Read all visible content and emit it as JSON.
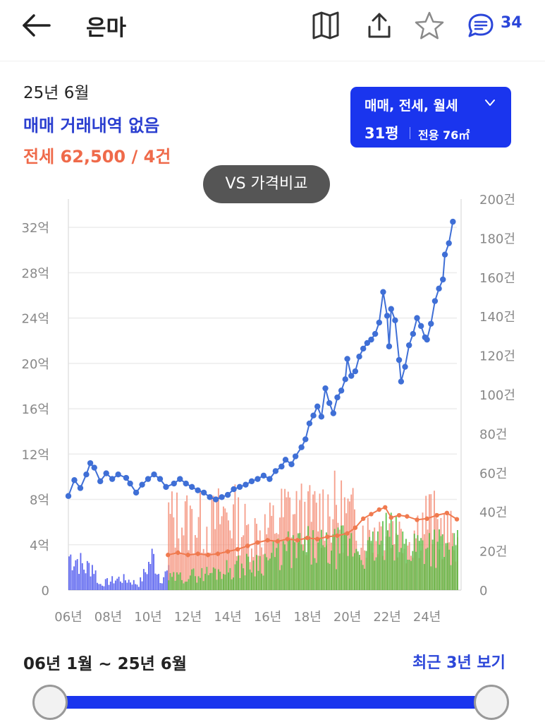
{
  "header": {
    "title": "은마",
    "comment_count": "34",
    "icons": [
      "back-arrow-icon",
      "map-icon",
      "share-icon",
      "star-icon",
      "comment-icon"
    ]
  },
  "summary": {
    "date": "25년 6월",
    "sale_status": "매매 거래내역 없음",
    "jeonse_status": "전세 62,500 / 4건"
  },
  "type_selector": {
    "types": "매매, 전세, 월세",
    "size": "31평",
    "exclusive_area": "전용 76㎡"
  },
  "vs_button": "VS 가격비교",
  "range": {
    "label": "06년 1월 ~ 25년 6월",
    "recent_button": "최근 3년 보기",
    "start_fraction": 0,
    "end_fraction": 1
  },
  "colors": {
    "sale": "#3f6fd6",
    "sale_volume": "#5a63ef",
    "jeonse": "#f08a6c",
    "jeonse_volume": "#f5907a",
    "wolse_volume": "#4fb83a",
    "accent": "#1a35ee"
  },
  "chart_data": {
    "type": "line",
    "grid": true,
    "x_ticks": [
      "06년",
      "08년",
      "10년",
      "12년",
      "14년",
      "16년",
      "18년",
      "20년",
      "22년",
      "24년"
    ],
    "y_left_ticks": [
      "0",
      "4억",
      "8억",
      "12억",
      "16억",
      "20억",
      "24억",
      "28억",
      "32억"
    ],
    "y_left_range": [
      0,
      34.5
    ],
    "y_right_ticks": [
      "0",
      "20건",
      "40건",
      "60건",
      "80건",
      "100건",
      "120건",
      "140건",
      "160건",
      "180건",
      "200건"
    ],
    "y_right_range": [
      0,
      200
    ],
    "x_range": [
      2006.0,
      2025.5
    ],
    "series": [
      {
        "key": "sale_price",
        "kind": "line",
        "axis": "left",
        "points": [
          [
            2006.0,
            8.3
          ],
          [
            2006.3,
            9.7
          ],
          [
            2006.6,
            9.0
          ],
          [
            2006.9,
            10.2
          ],
          [
            2007.1,
            11.2
          ],
          [
            2007.3,
            10.8
          ],
          [
            2007.6,
            9.6
          ],
          [
            2007.9,
            10.3
          ],
          [
            2008.2,
            9.8
          ],
          [
            2008.5,
            10.2
          ],
          [
            2008.9,
            9.9
          ],
          [
            2009.1,
            9.4
          ],
          [
            2009.4,
            8.6
          ],
          [
            2009.7,
            9.3
          ],
          [
            2010.0,
            9.8
          ],
          [
            2010.3,
            10.2
          ],
          [
            2010.6,
            9.8
          ],
          [
            2010.9,
            9.1
          ],
          [
            2011.3,
            9.4
          ],
          [
            2011.6,
            9.8
          ],
          [
            2011.9,
            9.4
          ],
          [
            2012.2,
            9.1
          ],
          [
            2012.5,
            8.8
          ],
          [
            2012.8,
            8.6
          ],
          [
            2013.1,
            8.2
          ],
          [
            2013.4,
            8.0
          ],
          [
            2013.7,
            8.2
          ],
          [
            2014.0,
            8.4
          ],
          [
            2014.3,
            8.9
          ],
          [
            2014.6,
            9.1
          ],
          [
            2014.9,
            9.3
          ],
          [
            2015.2,
            9.6
          ],
          [
            2015.5,
            9.8
          ],
          [
            2015.8,
            10.1
          ],
          [
            2016.1,
            9.8
          ],
          [
            2016.4,
            10.5
          ],
          [
            2016.7,
            10.9
          ],
          [
            2016.9,
            11.5
          ],
          [
            2017.2,
            11.1
          ],
          [
            2017.4,
            11.8
          ],
          [
            2017.7,
            12.6
          ],
          [
            2017.9,
            13.3
          ],
          [
            2018.1,
            14.7
          ],
          [
            2018.3,
            15.4
          ],
          [
            2018.5,
            16.2
          ],
          [
            2018.7,
            15.3
          ],
          [
            2018.9,
            17.8
          ],
          [
            2019.1,
            16.5
          ],
          [
            2019.3,
            15.6
          ],
          [
            2019.5,
            17.0
          ],
          [
            2019.7,
            17.6
          ],
          [
            2019.9,
            18.6
          ],
          [
            2020.0,
            20.4
          ],
          [
            2020.2,
            18.9
          ],
          [
            2020.4,
            19.3
          ],
          [
            2020.6,
            20.6
          ],
          [
            2020.8,
            21.3
          ],
          [
            2021.0,
            21.8
          ],
          [
            2021.2,
            22.1
          ],
          [
            2021.4,
            22.6
          ],
          [
            2021.6,
            23.6
          ],
          [
            2021.8,
            26.3
          ],
          [
            2022.0,
            24.2
          ],
          [
            2022.1,
            21.5
          ],
          [
            2022.2,
            24.8
          ],
          [
            2022.4,
            23.8
          ],
          [
            2022.6,
            20.3
          ],
          [
            2022.7,
            18.4
          ],
          [
            2022.9,
            19.7
          ],
          [
            2023.1,
            21.6
          ],
          [
            2023.3,
            22.6
          ],
          [
            2023.5,
            24.0
          ],
          [
            2023.7,
            23.3
          ],
          [
            2023.9,
            22.3
          ],
          [
            2024.0,
            22.1
          ],
          [
            2024.2,
            23.5
          ],
          [
            2024.4,
            25.5
          ],
          [
            2024.6,
            26.6
          ],
          [
            2024.8,
            27.4
          ],
          [
            2024.9,
            29.6
          ],
          [
            2025.1,
            30.6
          ],
          [
            2025.3,
            32.5
          ]
        ]
      },
      {
        "key": "jeonse_price",
        "kind": "line",
        "axis": "left",
        "points": [
          [
            2011.0,
            3.1
          ],
          [
            2011.5,
            3.3
          ],
          [
            2012.0,
            3.1
          ],
          [
            2012.5,
            3.2
          ],
          [
            2013.0,
            3.1
          ],
          [
            2013.5,
            3.2
          ],
          [
            2014.0,
            3.4
          ],
          [
            2014.5,
            3.6
          ],
          [
            2015.0,
            3.9
          ],
          [
            2015.5,
            4.2
          ],
          [
            2016.0,
            4.4
          ],
          [
            2016.5,
            4.3
          ],
          [
            2017.0,
            4.5
          ],
          [
            2017.5,
            4.4
          ],
          [
            2018.0,
            4.6
          ],
          [
            2018.5,
            4.5
          ],
          [
            2019.0,
            4.7
          ],
          [
            2019.5,
            4.8
          ],
          [
            2020.0,
            5.0
          ],
          [
            2020.4,
            5.5
          ],
          [
            2020.8,
            6.3
          ],
          [
            2021.2,
            6.7
          ],
          [
            2021.6,
            7.1
          ],
          [
            2021.9,
            7.3
          ],
          [
            2022.2,
            6.4
          ],
          [
            2022.6,
            6.6
          ],
          [
            2023.0,
            6.5
          ],
          [
            2023.5,
            6.2
          ],
          [
            2024.0,
            6.3
          ],
          [
            2024.5,
            6.6
          ],
          [
            2025.0,
            6.8
          ],
          [
            2025.5,
            6.25
          ]
        ]
      },
      {
        "key": "sale_volume",
        "kind": "bar",
        "axis": "right",
        "range": [
          2006.0,
          2011.0
        ],
        "typical_range": [
          2,
          24
        ],
        "points": [
          [
            2006.0,
            24
          ],
          [
            2006.4,
            22
          ],
          [
            2006.8,
            15
          ],
          [
            2007.2,
            18
          ],
          [
            2007.5,
            4
          ],
          [
            2008.0,
            6
          ],
          [
            2008.5,
            8
          ],
          [
            2009.0,
            7
          ],
          [
            2009.5,
            4
          ],
          [
            2009.8,
            12
          ],
          [
            2010.2,
            24
          ],
          [
            2010.6,
            8
          ],
          [
            2010.9,
            12
          ]
        ]
      },
      {
        "key": "jeonse_volume",
        "kind": "bar",
        "axis": "right",
        "range": [
          2011.0,
          2025.5
        ],
        "typical_range": [
          10,
          55
        ],
        "points": [
          [
            2011.0,
            50
          ],
          [
            2012.0,
            48
          ],
          [
            2013.0,
            45
          ],
          [
            2014.0,
            55
          ],
          [
            2015.0,
            40
          ],
          [
            2016.0,
            42
          ],
          [
            2017.0,
            56
          ],
          [
            2018.0,
            50
          ],
          [
            2019.0,
            58
          ],
          [
            2020.0,
            52
          ],
          [
            2021.0,
            40
          ],
          [
            2022.0,
            45
          ],
          [
            2023.0,
            35
          ],
          [
            2024.0,
            52
          ],
          [
            2025.0,
            38
          ]
        ]
      },
      {
        "key": "wolse_volume",
        "kind": "bar",
        "axis": "right",
        "range": [
          2011.0,
          2025.5
        ],
        "typical_range": [
          5,
          40
        ],
        "points": [
          [
            2011.0,
            8
          ],
          [
            2012.0,
            10
          ],
          [
            2013.0,
            12
          ],
          [
            2014.0,
            15
          ],
          [
            2015.0,
            18
          ],
          [
            2016.0,
            22
          ],
          [
            2017.0,
            28
          ],
          [
            2018.0,
            30
          ],
          [
            2019.0,
            28
          ],
          [
            2020.0,
            32
          ],
          [
            2021.0,
            26
          ],
          [
            2022.0,
            38
          ],
          [
            2023.0,
            30
          ],
          [
            2024.0,
            35
          ],
          [
            2025.0,
            28
          ]
        ]
      }
    ]
  }
}
